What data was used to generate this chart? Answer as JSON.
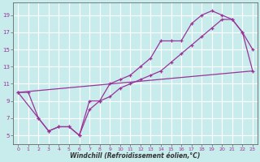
{
  "xlabel": "Windchill (Refroidissement éolien,°C)",
  "bg_color": "#c8ecec",
  "grid_color": "#ffffff",
  "line_color": "#993399",
  "xlim": [
    -0.5,
    23.5
  ],
  "ylim": [
    4.0,
    20.5
  ],
  "xticks": [
    0,
    1,
    2,
    3,
    4,
    5,
    6,
    7,
    8,
    9,
    10,
    11,
    12,
    13,
    14,
    15,
    16,
    17,
    18,
    19,
    20,
    21,
    22,
    23
  ],
  "yticks": [
    5,
    7,
    9,
    11,
    13,
    15,
    17,
    19
  ],
  "line1_x": [
    0,
    1,
    2,
    3,
    4,
    5,
    6,
    7,
    8,
    9,
    10,
    11,
    12,
    13,
    14,
    15,
    16,
    17,
    18,
    19,
    20,
    21,
    22,
    23
  ],
  "line1_y": [
    10.0,
    10.0,
    7.0,
    5.5,
    6.0,
    6.0,
    5.0,
    9.0,
    9.0,
    11.0,
    11.5,
    12.0,
    13.0,
    14.0,
    16.0,
    16.0,
    16.0,
    18.0,
    19.0,
    19.5,
    19.0,
    18.5,
    17.0,
    15.0
  ],
  "line2_x": [
    0,
    2,
    3,
    4,
    5,
    6,
    7,
    8,
    9,
    10,
    11,
    12,
    13,
    14,
    15,
    16,
    17,
    18,
    19,
    20,
    21,
    22,
    23
  ],
  "line2_y": [
    10.0,
    7.0,
    5.5,
    6.0,
    6.0,
    5.0,
    8.0,
    9.0,
    9.5,
    10.5,
    11.0,
    11.5,
    12.0,
    12.5,
    13.5,
    14.5,
    15.5,
    16.5,
    17.5,
    18.5,
    18.5,
    17.0,
    12.5
  ],
  "line3_x": [
    0,
    23
  ],
  "line3_y": [
    10.0,
    12.5
  ]
}
